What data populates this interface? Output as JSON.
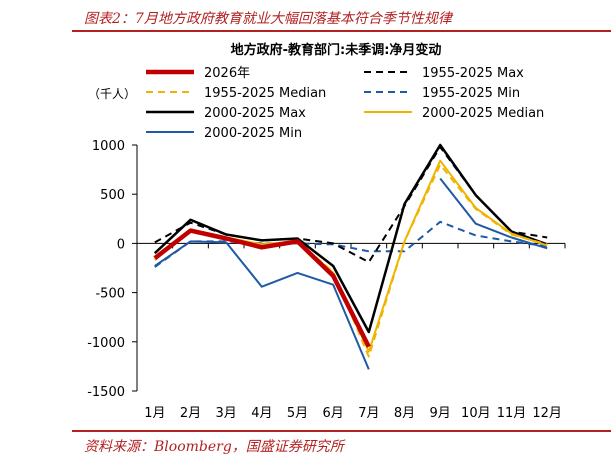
{
  "figure": {
    "title": "图表2：7月地方政府教育就业大幅回落基本符合季节性规律",
    "source": "资料来源：Bloomberg，国盛证券研究所",
    "accent_color": "#b22222"
  },
  "chart_data": {
    "type": "line",
    "title": "地方政府-教育部门:未季调:净月变动",
    "ylabel": "（千人）",
    "xlabel": "",
    "ylim": [
      -1500,
      1000
    ],
    "yticks": [
      1000,
      500,
      0,
      -500,
      -1000,
      -1500
    ],
    "ytick_labels": [
      "1000",
      "500",
      "0",
      "-500",
      "-1000",
      "-1500"
    ],
    "categories": [
      "1月",
      "2月",
      "3月",
      "4月",
      "5月",
      "6月",
      "7月",
      "8月",
      "9月",
      "10月",
      "11月",
      "12月"
    ],
    "grid": false,
    "legend": "top, two columns",
    "series": [
      {
        "name": "2000-2025 Min",
        "color": "#1f5aa6",
        "dash": "solid",
        "width": 2,
        "values": [
          -230,
          20,
          10,
          -440,
          -300,
          -420,
          -1280,
          null,
          660,
          200,
          60,
          -50
        ]
      },
      {
        "name": "1955-2025 Min",
        "color": "#1f5aa6",
        "dash": "dashed",
        "width": 2,
        "values": [
          -240,
          20,
          20,
          0,
          0,
          -10,
          -80,
          -80,
          220,
          80,
          20,
          -30
        ]
      },
      {
        "name": "1955-2025 Max",
        "color": "#000000",
        "dash": "dashed",
        "width": 2,
        "values": [
          10,
          210,
          90,
          30,
          50,
          0,
          -190,
          380,
          980,
          490,
          120,
          60
        ]
      },
      {
        "name": "2000-2025 Max",
        "color": "#000000",
        "dash": "solid",
        "width": 2.5,
        "values": [
          -100,
          240,
          90,
          30,
          50,
          -230,
          -900,
          400,
          1000,
          490,
          120,
          -10
        ]
      },
      {
        "name": "1955-2025 Median",
        "color": "#f0b400",
        "dash": "dashed",
        "width": 2,
        "values": [
          -170,
          140,
          60,
          -10,
          20,
          -290,
          -1150,
          20,
          800,
          350,
          90,
          -10
        ]
      },
      {
        "name": "2000-2025 Median",
        "color": "#f0b400",
        "dash": "solid",
        "width": 2,
        "values": [
          -160,
          140,
          60,
          -10,
          20,
          -300,
          -1100,
          20,
          840,
          360,
          100,
          -20
        ]
      },
      {
        "name": "2026年",
        "color": "#c00000",
        "dash": "solid",
        "width": 4.5,
        "values": [
          -150,
          130,
          50,
          -40,
          20,
          -330,
          -1050,
          null,
          null,
          null,
          null,
          null
        ]
      }
    ],
    "legend_entries": [
      {
        "name": "2026年",
        "color": "#c00000",
        "dash": "solid",
        "width": 4.5
      },
      {
        "name": "1955-2025 Max",
        "color": "#000000",
        "dash": "dashed",
        "width": 2
      },
      {
        "name": "1955-2025 Median",
        "color": "#f0b400",
        "dash": "dashed",
        "width": 2
      },
      {
        "name": "1955-2025 Min",
        "color": "#1f5aa6",
        "dash": "dashed",
        "width": 2
      },
      {
        "name": "2000-2025 Max",
        "color": "#000000",
        "dash": "solid",
        "width": 2.5
      },
      {
        "name": "2000-2025 Median",
        "color": "#f0b400",
        "dash": "solid",
        "width": 2
      },
      {
        "name": "2000-2025 Min",
        "color": "#1f5aa6",
        "dash": "solid",
        "width": 2
      }
    ]
  }
}
